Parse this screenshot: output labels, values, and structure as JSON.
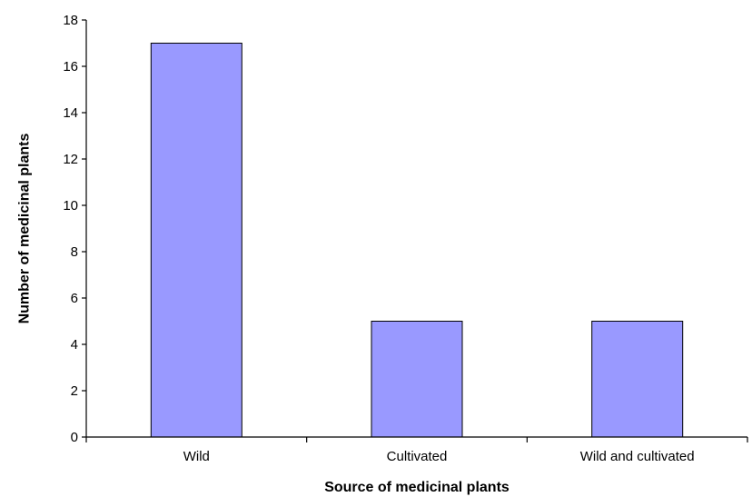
{
  "chart_data": {
    "type": "bar",
    "title": "",
    "xlabel": "Source of medicinal plants",
    "ylabel": "Number of medicinal plants",
    "categories": [
      "Wild",
      "Cultivated",
      "Wild and cultivated"
    ],
    "values": [
      17,
      5,
      5
    ],
    "ylim": [
      0,
      18
    ],
    "yticks": [
      0,
      2,
      4,
      6,
      8,
      10,
      12,
      14,
      16,
      18
    ],
    "grid": false,
    "legend": "none",
    "colors": {
      "bar_fill": "#9999ff",
      "bar_stroke": "#000000",
      "axis": "#000000"
    }
  }
}
